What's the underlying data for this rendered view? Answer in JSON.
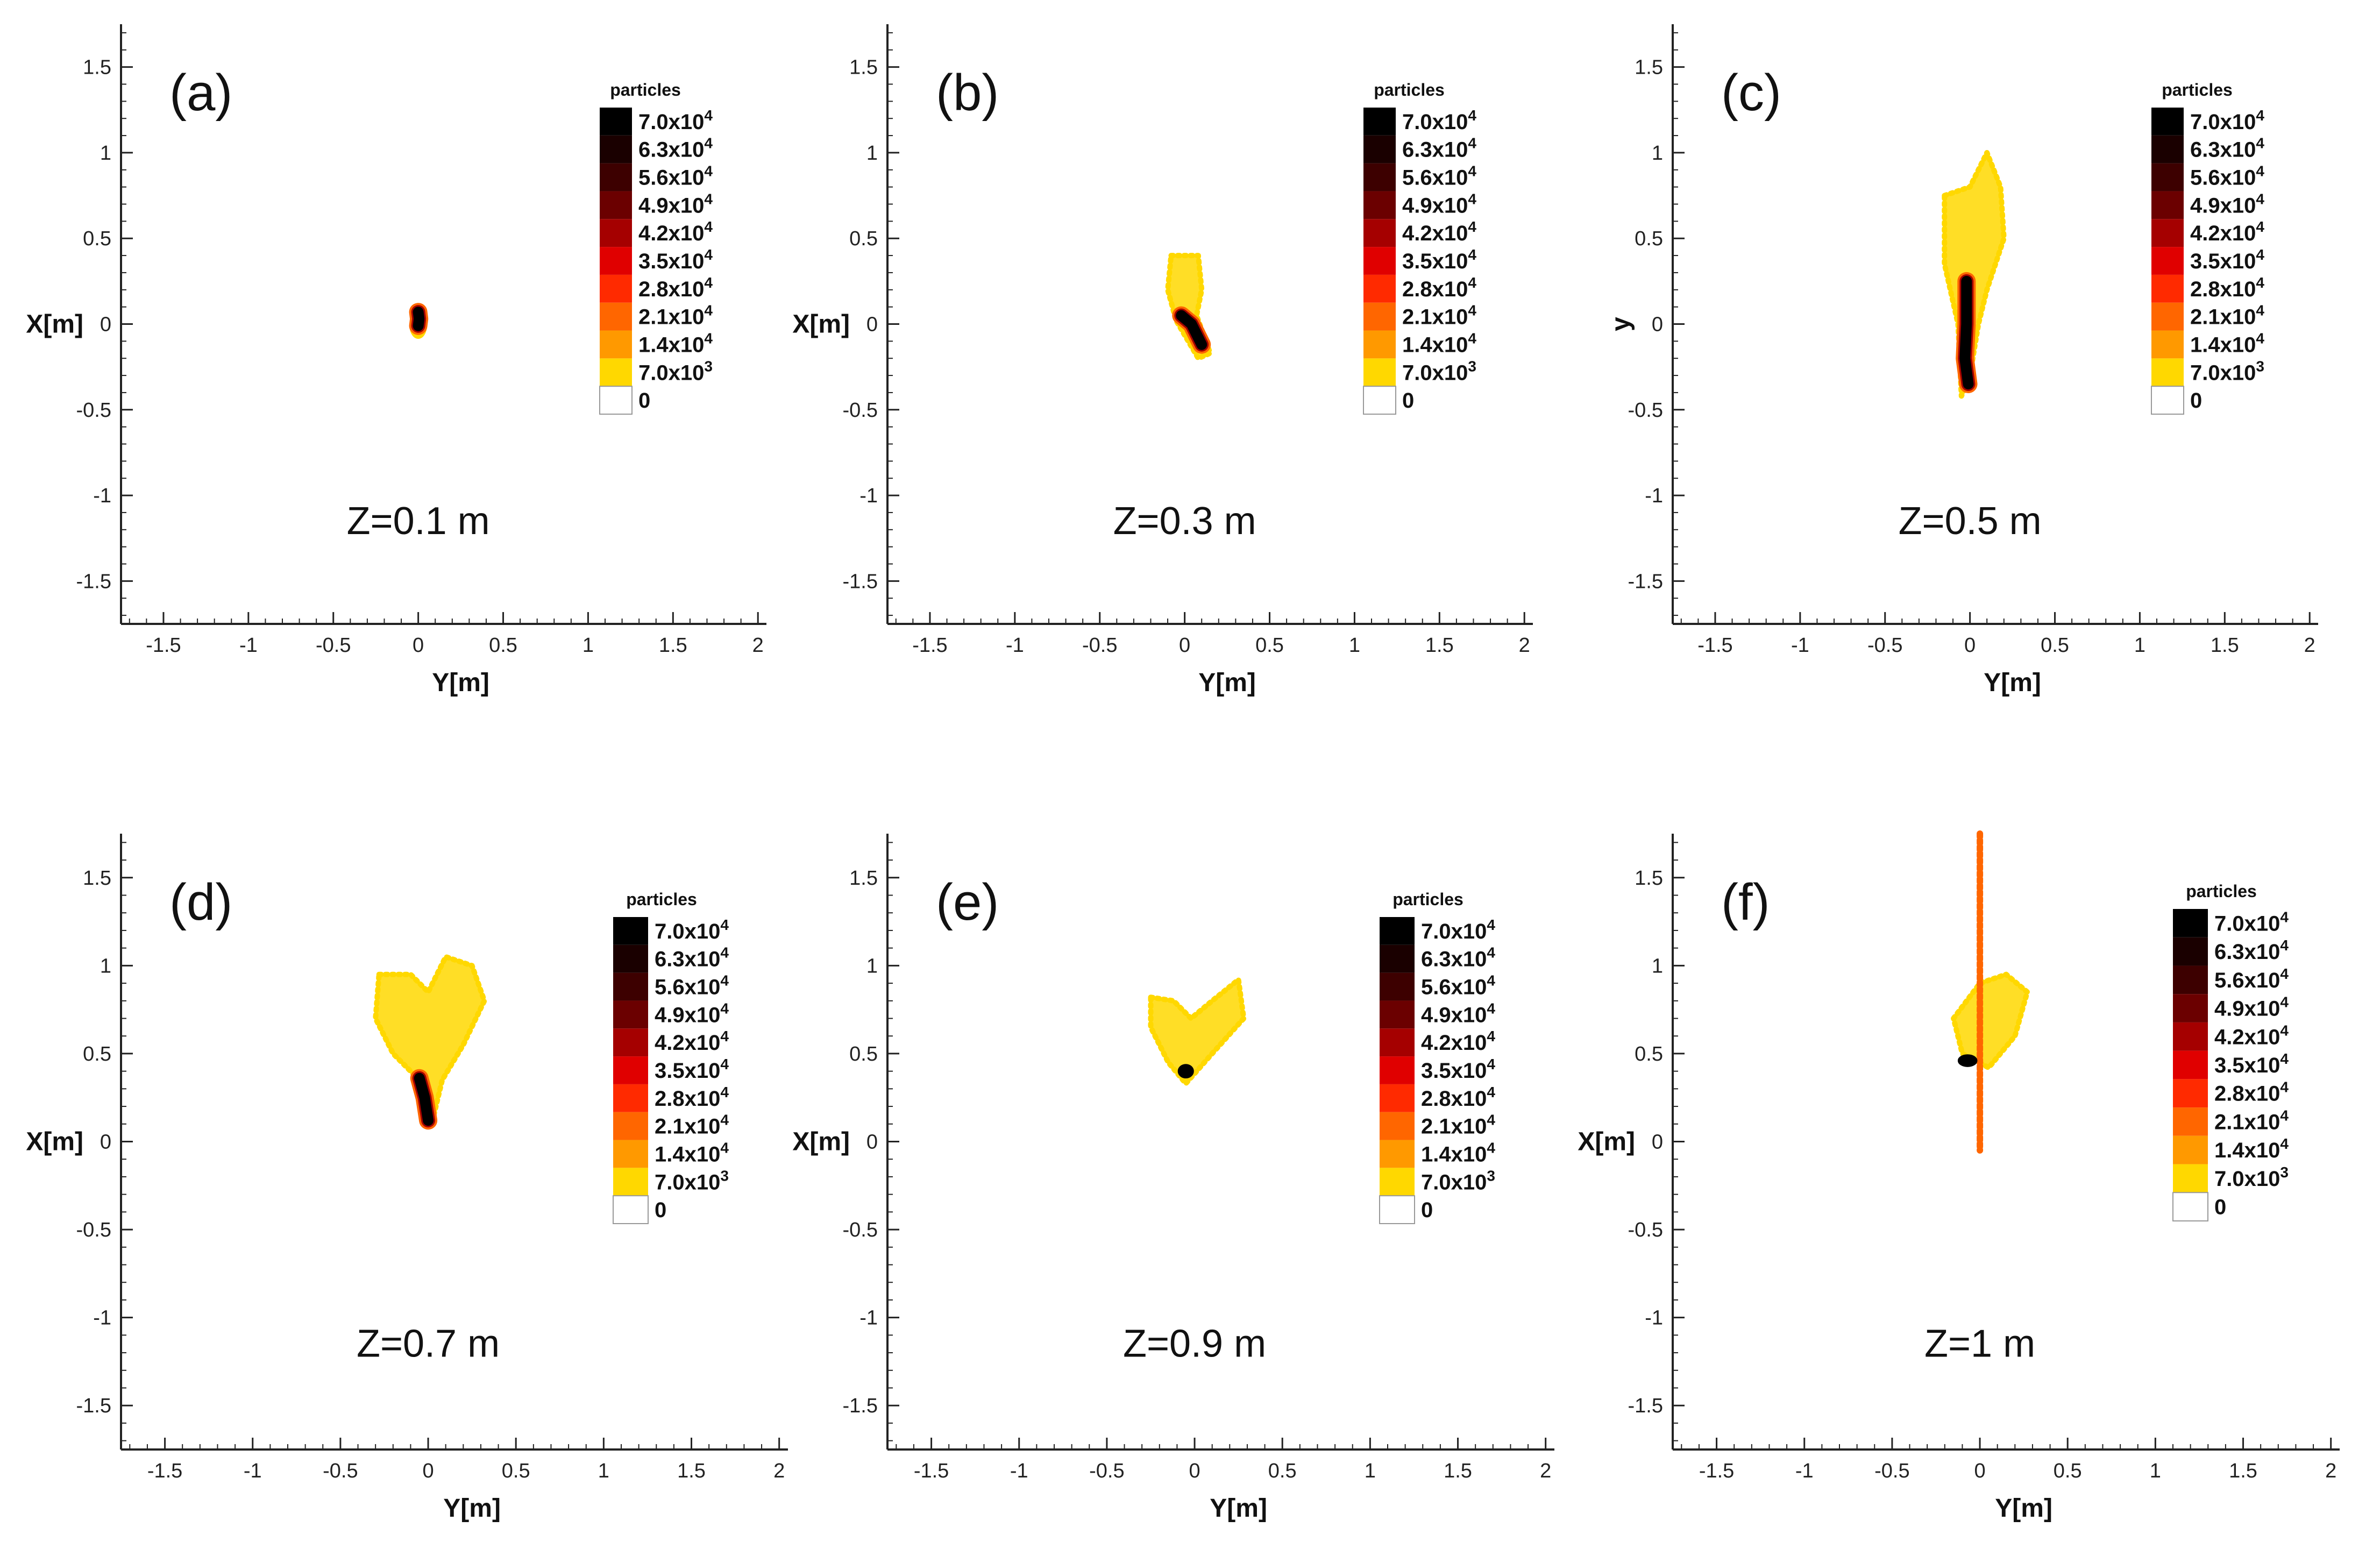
{
  "chart_data": [
    {
      "type": "scatter",
      "panel_label": "(a)",
      "z_label": "Z=0.1 m",
      "xlabel": "Y[m]",
      "ylabel": "X[m]",
      "xlim": [
        -1.75,
        2.05
      ],
      "ylim": [
        -1.75,
        1.75
      ],
      "xticks": [
        -1.5,
        -1,
        -0.5,
        0,
        0.5,
        1,
        1.5,
        2
      ],
      "yticks": [
        -1.5,
        -1,
        -0.5,
        0,
        0.5,
        1,
        1.5
      ],
      "regions": [
        {
          "level": "low",
          "shape": "ellipse",
          "cx": 0.0,
          "cy": -0.01,
          "rx": 0.045,
          "ry": 0.07
        },
        {
          "level": "mid",
          "shape": "ellipse",
          "cx": 0.0,
          "cy": 0.0,
          "rx": 0.025,
          "ry": 0.05
        },
        {
          "level": "core",
          "shape": "path",
          "points": [
            [
              0.0,
              0.07
            ],
            [
              0.005,
              0.03
            ],
            [
              0.0,
              -0.01
            ]
          ]
        }
      ],
      "colorbar": {
        "title": "particles",
        "levels": [
          "7.0x10⁴",
          "6.3x10⁴",
          "5.6x10⁴",
          "4.9x10⁴",
          "4.2x10⁴",
          "3.5x10⁴",
          "2.8x10⁴",
          "2.1x10⁴",
          "1.4x10⁴",
          "7.0x10³",
          "0"
        ],
        "colors": [
          "#000000",
          "#1a0000",
          "#3d0000",
          "#6b0000",
          "#a50000",
          "#e00000",
          "#ff2a00",
          "#ff6600",
          "#ff9900",
          "#ffd800",
          "#ffffff"
        ]
      }
    },
    {
      "type": "scatter",
      "panel_label": "(b)",
      "z_label": "Z=0.3 m",
      "xlabel": "Y[m]",
      "ylabel": "X[m]",
      "xlim": [
        -1.75,
        2.05
      ],
      "ylim": [
        -1.75,
        1.75
      ],
      "xticks": [
        -1.5,
        -1,
        -0.5,
        0,
        0.5,
        1,
        1.5,
        2
      ],
      "yticks": [
        -1.5,
        -1,
        -0.5,
        0,
        0.5,
        1,
        1.5
      ],
      "regions": [
        {
          "level": "low",
          "shape": "blob",
          "points": [
            [
              -0.08,
              0.4
            ],
            [
              0.08,
              0.4
            ],
            [
              0.1,
              0.2
            ],
            [
              0.07,
              0.05
            ],
            [
              0.15,
              -0.17
            ],
            [
              0.08,
              -0.2
            ],
            [
              -0.05,
              0.02
            ],
            [
              -0.1,
              0.2
            ]
          ]
        },
        {
          "level": "core",
          "shape": "path",
          "points": [
            [
              -0.02,
              0.05
            ],
            [
              0.04,
              0.0
            ],
            [
              0.1,
              -0.12
            ]
          ]
        }
      ],
      "colorbar": {
        "title": "particles",
        "levels": [
          "7.0x10⁴",
          "6.3x10⁴",
          "5.6x10⁴",
          "4.9x10⁴",
          "4.2x10⁴",
          "3.5x10⁴",
          "2.8x10⁴",
          "2.1x10⁴",
          "1.4x10⁴",
          "7.0x10³",
          "0"
        ],
        "colors": [
          "#000000",
          "#1a0000",
          "#3d0000",
          "#6b0000",
          "#a50000",
          "#e00000",
          "#ff2a00",
          "#ff6600",
          "#ff9900",
          "#ffd800",
          "#ffffff"
        ]
      }
    },
    {
      "type": "scatter",
      "panel_label": "(c)",
      "z_label": "Z=0.5 m",
      "xlabel": "Y[m]",
      "ylabel": "y",
      "xlim": [
        -1.75,
        2.05
      ],
      "ylim": [
        -1.75,
        1.75
      ],
      "xticks": [
        -1.5,
        -1,
        -0.5,
        0,
        0.5,
        1,
        1.5,
        2
      ],
      "yticks": [
        -1.5,
        -1,
        -0.5,
        0,
        0.5,
        1,
        1.5
      ],
      "regions": [
        {
          "level": "low",
          "shape": "blob",
          "points": [
            [
              -0.15,
              0.75
            ],
            [
              0.0,
              0.8
            ],
            [
              0.1,
              1.0
            ],
            [
              0.18,
              0.8
            ],
            [
              0.2,
              0.5
            ],
            [
              0.1,
              0.2
            ],
            [
              0.05,
              0.0
            ],
            [
              0.0,
              -0.3
            ],
            [
              -0.05,
              -0.42
            ],
            [
              -0.07,
              0.0
            ],
            [
              -0.15,
              0.35
            ]
          ]
        },
        {
          "level": "core",
          "shape": "path",
          "points": [
            [
              -0.02,
              0.25
            ],
            [
              -0.02,
              0.0
            ],
            [
              -0.03,
              -0.2
            ],
            [
              -0.01,
              -0.35
            ]
          ]
        }
      ],
      "colorbar": {
        "title": "particles",
        "levels": [
          "7.0x10⁴",
          "6.3x10⁴",
          "5.6x10⁴",
          "4.9x10⁴",
          "4.2x10⁴",
          "3.5x10⁴",
          "2.8x10⁴",
          "2.1x10⁴",
          "1.4x10⁴",
          "7.0x10³",
          "0"
        ],
        "colors": [
          "#000000",
          "#1a0000",
          "#3d0000",
          "#6b0000",
          "#a50000",
          "#e00000",
          "#ff2a00",
          "#ff6600",
          "#ff9900",
          "#ffd800",
          "#ffffff"
        ]
      }
    },
    {
      "type": "scatter",
      "panel_label": "(d)",
      "z_label": "Z=0.7 m",
      "xlabel": "Y[m]",
      "ylabel": "X[m]",
      "xlim": [
        -1.75,
        2.05
      ],
      "ylim": [
        -1.75,
        1.75
      ],
      "xticks": [
        -1.5,
        -1,
        -0.5,
        0,
        0.5,
        1,
        1.5,
        2
      ],
      "yticks": [
        -1.5,
        -1,
        -0.5,
        0,
        0.5,
        1,
        1.5
      ],
      "regions": [
        {
          "level": "low",
          "shape": "blob",
          "points": [
            [
              -0.28,
              0.95
            ],
            [
              -0.1,
              0.95
            ],
            [
              0.0,
              0.85
            ],
            [
              0.1,
              1.05
            ],
            [
              0.25,
              1.0
            ],
            [
              0.32,
              0.8
            ],
            [
              0.2,
              0.55
            ],
            [
              0.08,
              0.35
            ],
            [
              0.02,
              0.1
            ],
            [
              -0.05,
              0.35
            ],
            [
              -0.2,
              0.5
            ],
            [
              -0.3,
              0.7
            ]
          ]
        },
        {
          "level": "core",
          "shape": "path",
          "points": [
            [
              -0.05,
              0.36
            ],
            [
              -0.02,
              0.25
            ],
            [
              0.0,
              0.12
            ]
          ]
        }
      ],
      "colorbar": {
        "title": "particles",
        "levels": [
          "7.0x10⁴",
          "6.3x10⁴",
          "5.6x10⁴",
          "4.9x10⁴",
          "4.2x10⁴",
          "3.5x10⁴",
          "2.8x10⁴",
          "2.1x10⁴",
          "1.4x10⁴",
          "7.0x10³",
          "0"
        ],
        "colors": [
          "#000000",
          "#1a0000",
          "#3d0000",
          "#6b0000",
          "#a50000",
          "#e00000",
          "#ff2a00",
          "#ff6600",
          "#ff9900",
          "#ffd800",
          "#ffffff"
        ]
      }
    },
    {
      "type": "scatter",
      "panel_label": "(e)",
      "z_label": "Z=0.9 m",
      "xlabel": "Y[m]",
      "ylabel": "X[m]",
      "xlim": [
        -1.75,
        2.05
      ],
      "ylim": [
        -1.75,
        1.75
      ],
      "xticks": [
        -1.5,
        -1,
        -0.5,
        0,
        0.5,
        1,
        1.5,
        2
      ],
      "yticks": [
        -1.5,
        -1,
        -0.5,
        0,
        0.5,
        1,
        1.5
      ],
      "regions": [
        {
          "level": "low",
          "shape": "blob",
          "points": [
            [
              -0.25,
              0.82
            ],
            [
              -0.12,
              0.8
            ],
            [
              -0.02,
              0.7
            ],
            [
              0.1,
              0.8
            ],
            [
              0.25,
              0.92
            ],
            [
              0.28,
              0.7
            ],
            [
              0.1,
              0.5
            ],
            [
              -0.05,
              0.33
            ],
            [
              -0.15,
              0.45
            ],
            [
              -0.25,
              0.65
            ]
          ]
        },
        {
          "level": "core",
          "shape": "ellipse",
          "cx": -0.05,
          "cy": 0.4,
          "rx": 0.04,
          "ry": 0.035
        }
      ],
      "colorbar": {
        "title": "particles",
        "levels": [
          "7.0x10⁴",
          "6.3x10⁴",
          "5.6x10⁴",
          "4.9x10⁴",
          "4.2x10⁴",
          "3.5x10⁴",
          "2.8x10⁴",
          "2.1x10⁴",
          "1.4x10⁴",
          "7.0x10³",
          "0"
        ],
        "colors": [
          "#000000",
          "#1a0000",
          "#3d0000",
          "#6b0000",
          "#a50000",
          "#e00000",
          "#ff2a00",
          "#ff6600",
          "#ff9900",
          "#ffd800",
          "#ffffff"
        ]
      }
    },
    {
      "type": "scatter",
      "panel_label": "(f)",
      "z_label": "Z=1 m",
      "xlabel": "Y[m]",
      "ylabel": "X[m]",
      "xlim": [
        -1.75,
        2.05
      ],
      "ylim": [
        -1.75,
        1.75
      ],
      "xticks": [
        -1.5,
        -1,
        -0.5,
        0,
        0.5,
        1,
        1.5,
        2
      ],
      "yticks": [
        -1.5,
        -1,
        -0.5,
        0,
        0.5,
        1,
        1.5
      ],
      "regions": [
        {
          "level": "low",
          "shape": "blob",
          "points": [
            [
              -0.15,
              0.7
            ],
            [
              0.0,
              0.9
            ],
            [
              0.15,
              0.95
            ],
            [
              0.27,
              0.85
            ],
            [
              0.2,
              0.6
            ],
            [
              0.05,
              0.42
            ],
            [
              -0.1,
              0.5
            ]
          ]
        },
        {
          "level": "line",
          "shape": "path",
          "points": [
            [
              0.0,
              1.75
            ],
            [
              0.0,
              -0.05
            ]
          ]
        },
        {
          "level": "core",
          "shape": "ellipse",
          "cx": -0.07,
          "cy": 0.46,
          "rx": 0.05,
          "ry": 0.03
        }
      ],
      "colorbar": {
        "title": "particles",
        "levels": [
          "7.0x10⁴",
          "6.3x10⁴",
          "5.6x10⁴",
          "4.9x10⁴",
          "4.2x10⁴",
          "3.5x10⁴",
          "2.8x10⁴",
          "2.1x10⁴",
          "1.4x10⁴",
          "7.0x10³",
          "0"
        ],
        "colors": [
          "#000000",
          "#1a0000",
          "#3d0000",
          "#6b0000",
          "#a50000",
          "#e00000",
          "#ff2a00",
          "#ff6600",
          "#ff9900",
          "#ffd800",
          "#ffffff"
        ]
      }
    }
  ]
}
